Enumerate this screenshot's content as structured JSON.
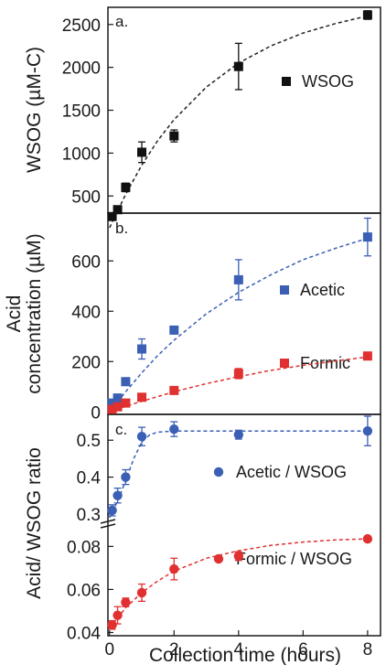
{
  "chart_data": [
    {
      "panel": "a.",
      "type": "scatter",
      "ylabel": "WSOG (µM-C)",
      "ylim": [
        300,
        2700
      ],
      "yticks": [
        "500",
        "1000",
        "1500",
        "2000",
        "2500"
      ],
      "xlim": [
        -0.05,
        8.4
      ],
      "series": [
        {
          "name": "WSOG",
          "color": "#111111",
          "marker": "square",
          "points": [
            {
              "x": 0.08,
              "y": 260,
              "err": 40
            },
            {
              "x": 0.25,
              "y": 340,
              "err": 30
            },
            {
              "x": 0.5,
              "y": 600,
              "err": 50
            },
            {
              "x": 1.0,
              "y": 1010,
              "err": 120
            },
            {
              "x": 2.0,
              "y": 1200,
              "err": 70
            },
            {
              "x": 4.0,
              "y": 2010,
              "err": 270
            },
            {
              "x": 8.0,
              "y": 2610,
              "err": 50
            }
          ],
          "fit": [
            [
              0,
              130
            ],
            [
              0.5,
              520
            ],
            [
              1,
              860
            ],
            [
              1.5,
              1150
            ],
            [
              2,
              1390
            ],
            [
              3,
              1770
            ],
            [
              4,
              2050
            ],
            [
              5,
              2250
            ],
            [
              6,
              2400
            ],
            [
              7,
              2510
            ],
            [
              8,
              2600
            ]
          ]
        }
      ]
    },
    {
      "panel": "b.",
      "type": "scatter",
      "ylabel": [
        "Acid",
        "concentration (µM)"
      ],
      "ylim": [
        -10,
        790
      ],
      "yticks": [
        "0",
        "200",
        "400",
        "600"
      ],
      "xlim": [
        -0.05,
        8.4
      ],
      "series": [
        {
          "name": "Acetic",
          "color": "#3a5fb4",
          "marker": "square",
          "points": [
            {
              "x": 0.08,
              "y": 35,
              "err": 10
            },
            {
              "x": 0.25,
              "y": 55,
              "err": 12
            },
            {
              "x": 0.5,
              "y": 120,
              "err": 10
            },
            {
              "x": 1.0,
              "y": 250,
              "err": 40
            },
            {
              "x": 2.0,
              "y": 325,
              "err": 15
            },
            {
              "x": 4.0,
              "y": 525,
              "err": 80
            },
            {
              "x": 8.0,
              "y": 695,
              "err": 75
            }
          ],
          "fit": [
            [
              0,
              0
            ],
            [
              0.5,
              80
            ],
            [
              1,
              155
            ],
            [
              1.5,
              225
            ],
            [
              2,
              285
            ],
            [
              3,
              390
            ],
            [
              4,
              475
            ],
            [
              5,
              545
            ],
            [
              6,
              605
            ],
            [
              7,
              650
            ],
            [
              8,
              690
            ]
          ]
        },
        {
          "name": "Formic",
          "color": "#e03030",
          "marker": "square",
          "points": [
            {
              "x": 0.08,
              "y": 10,
              "err": 5
            },
            {
              "x": 0.25,
              "y": 20,
              "err": 5
            },
            {
              "x": 0.5,
              "y": 35,
              "err": 6
            },
            {
              "x": 1.0,
              "y": 58,
              "err": 6
            },
            {
              "x": 2.0,
              "y": 85,
              "err": 8
            },
            {
              "x": 4.0,
              "y": 152,
              "err": 20
            },
            {
              "x": 8.0,
              "y": 222,
              "err": 8
            }
          ],
          "fit": [
            [
              0,
              0
            ],
            [
              0.5,
              22
            ],
            [
              1,
              42
            ],
            [
              2,
              80
            ],
            [
              3,
              112
            ],
            [
              4,
              140
            ],
            [
              5,
              165
            ],
            [
              6,
              185
            ],
            [
              7,
              202
            ],
            [
              8,
              218
            ]
          ]
        }
      ]
    },
    {
      "panel": "c.",
      "type": "scatter",
      "ylabel": "Acid/ WSOG ratio",
      "xlabel": "Collection time (hours)",
      "xticks": [
        "0",
        "2",
        "4",
        "6",
        "8"
      ],
      "xlim": [
        -0.05,
        8.4
      ],
      "upper": {
        "ylim": [
          0.28,
          0.57
        ],
        "yticks": [
          "0.3",
          "0.4",
          "0.5"
        ],
        "series": {
          "name": "Acetic / WSOG",
          "color": "#3a5fb4",
          "marker": "circle",
          "points": [
            {
              "x": 0.08,
              "y": 0.31,
              "err": 0.015
            },
            {
              "x": 0.25,
              "y": 0.35,
              "err": 0.02
            },
            {
              "x": 0.5,
              "y": 0.4,
              "err": 0.02
            },
            {
              "x": 1.0,
              "y": 0.51,
              "err": 0.025
            },
            {
              "x": 2.0,
              "y": 0.53,
              "err": 0.02
            },
            {
              "x": 4.0,
              "y": 0.515,
              "err": 0.012
            },
            {
              "x": 8.0,
              "y": 0.525,
              "err": 0.04
            }
          ],
          "fit": [
            [
              0,
              0.29
            ],
            [
              0.25,
              0.335
            ],
            [
              0.5,
              0.39
            ],
            [
              0.75,
              0.45
            ],
            [
              1,
              0.495
            ],
            [
              1.25,
              0.515
            ],
            [
              1.5,
              0.522
            ],
            [
              2,
              0.525
            ],
            [
              4,
              0.525
            ],
            [
              8,
              0.525
            ]
          ]
        }
      },
      "lower": {
        "ylim": [
          0.0385,
          0.0895
        ],
        "yticks": [
          "0.04",
          "0.06",
          "0.08"
        ],
        "series": {
          "name": "Formic / WSOG",
          "color": "#e03030",
          "marker": "circle",
          "points": [
            {
              "x": 0.08,
              "y": 0.0435,
              "err": 0.002
            },
            {
              "x": 0.25,
              "y": 0.048,
              "err": 0.004
            },
            {
              "x": 0.5,
              "y": 0.054,
              "err": 0.002
            },
            {
              "x": 1.0,
              "y": 0.0585,
              "err": 0.004
            },
            {
              "x": 2.0,
              "y": 0.0695,
              "err": 0.005
            },
            {
              "x": 4.0,
              "y": 0.0755,
              "err": 0.002
            },
            {
              "x": 8.0,
              "y": 0.0835,
              "err": 0.001
            }
          ],
          "fit": [
            [
              0,
              0.042
            ],
            [
              0.5,
              0.0515
            ],
            [
              1,
              0.0585
            ],
            [
              1.5,
              0.064
            ],
            [
              2,
              0.0685
            ],
            [
              3,
              0.0745
            ],
            [
              4,
              0.078
            ],
            [
              5,
              0.0805
            ],
            [
              6,
              0.082
            ],
            [
              7,
              0.083
            ],
            [
              8,
              0.0835
            ]
          ]
        }
      }
    }
  ]
}
